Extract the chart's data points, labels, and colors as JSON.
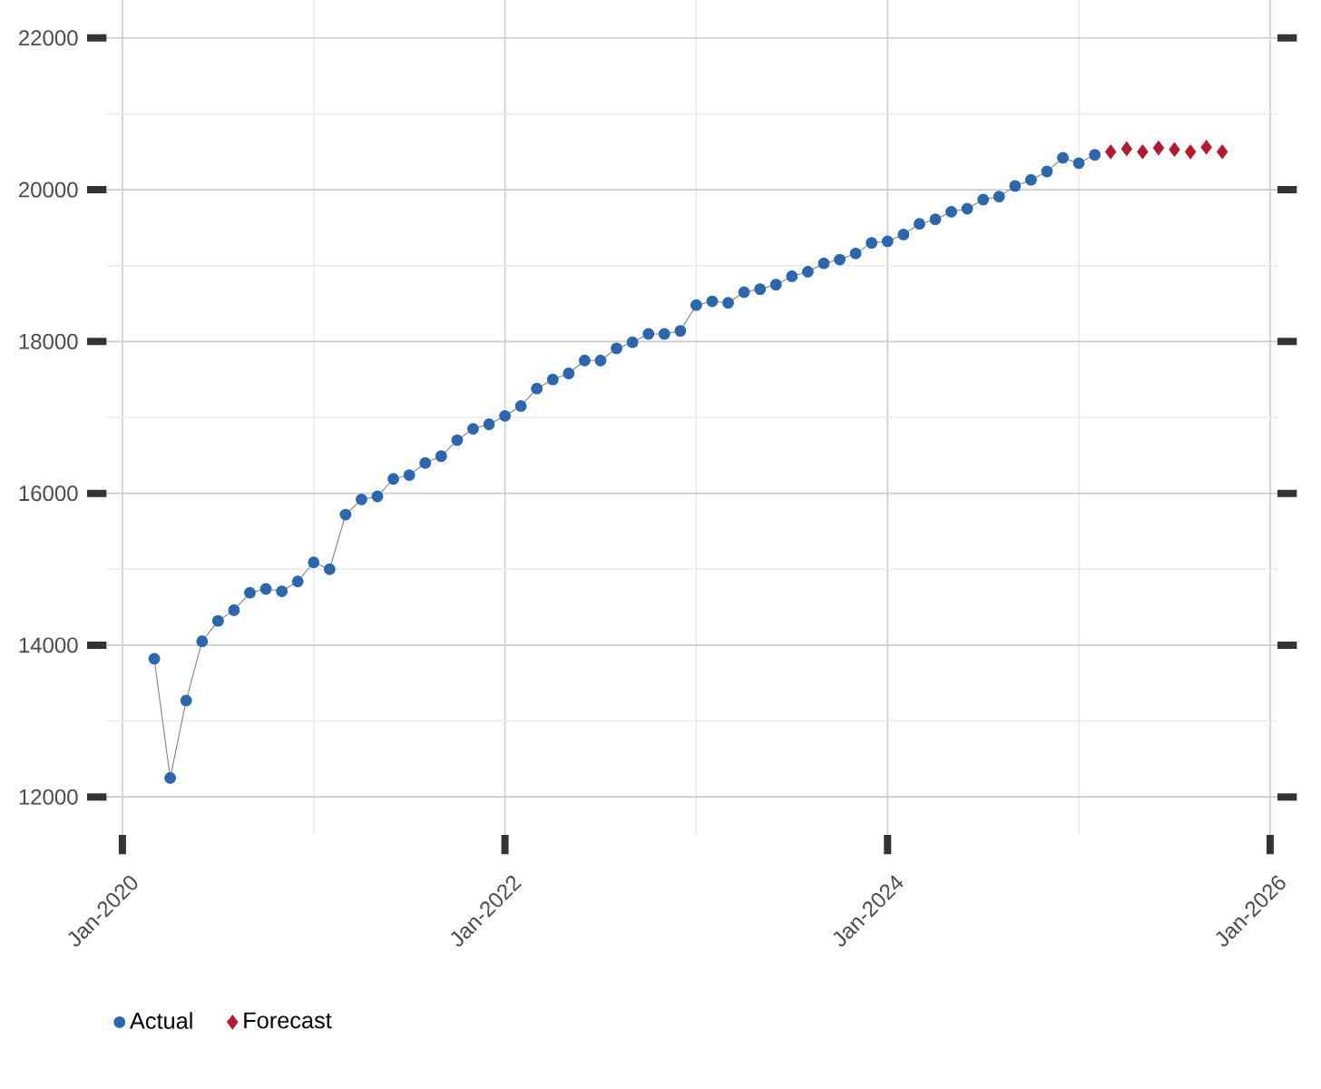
{
  "chart_data": {
    "type": "line",
    "x": [
      "2020-03",
      "2020-04",
      "2020-05",
      "2020-06",
      "2020-07",
      "2020-08",
      "2020-09",
      "2020-10",
      "2020-11",
      "2020-12",
      "2021-01",
      "2021-02",
      "2021-03",
      "2021-04",
      "2021-05",
      "2021-06",
      "2021-07",
      "2021-08",
      "2021-09",
      "2021-10",
      "2021-11",
      "2021-12",
      "2022-01",
      "2022-02",
      "2022-03",
      "2022-04",
      "2022-05",
      "2022-06",
      "2022-07",
      "2022-08",
      "2022-09",
      "2022-10",
      "2022-11",
      "2022-12",
      "2023-01",
      "2023-02",
      "2023-03",
      "2023-04",
      "2023-05",
      "2023-06",
      "2023-07",
      "2023-08",
      "2023-09",
      "2023-10",
      "2023-11",
      "2023-12",
      "2024-01",
      "2024-02",
      "2024-03",
      "2024-04",
      "2024-05",
      "2024-06",
      "2024-07",
      "2024-08",
      "2024-09",
      "2024-10",
      "2024-11",
      "2024-12",
      "2025-01",
      "2025-02"
    ],
    "series": [
      {
        "name": "Actual",
        "marker": "circle",
        "color": "#2b66ae",
        "values": [
          13820,
          12250,
          13270,
          14050,
          14320,
          14460,
          14690,
          14740,
          14710,
          14840,
          15090,
          15000,
          15720,
          15920,
          15960,
          16190,
          16240,
          16400,
          16490,
          16700,
          16850,
          16910,
          17020,
          17150,
          17380,
          17500,
          17580,
          17750,
          17750,
          17910,
          17990,
          18100,
          18100,
          18140,
          18480,
          18530,
          18510,
          18650,
          18690,
          18750,
          18860,
          18920,
          19030,
          19080,
          19160,
          19300,
          19320,
          19410,
          19550,
          19610,
          19710,
          19750,
          19870,
          19910,
          20050,
          20130,
          20240,
          20420,
          20350,
          20460
        ]
      },
      {
        "name": "Forecast",
        "type": "scatter",
        "marker": "diamond",
        "color": "#b5192e",
        "x": [
          "2025-03",
          "2025-04",
          "2025-05",
          "2025-06",
          "2025-07",
          "2025-08",
          "2025-09",
          "2025-10"
        ],
        "values": [
          20500,
          20540,
          20500,
          20550,
          20530,
          20500,
          20560,
          20500
        ]
      }
    ],
    "xlim": [
      "2019-12-01",
      "2026-01-15"
    ],
    "xticks": [
      {
        "value": "2020-01",
        "label": "Jan-2020"
      },
      {
        "value": "2021-01",
        "label": null
      },
      {
        "value": "2022-01",
        "label": "Jan-2022"
      },
      {
        "value": "2023-01",
        "label": null
      },
      {
        "value": "2024-01",
        "label": "Jan-2024"
      },
      {
        "value": "2025-01",
        "label": null
      },
      {
        "value": "2026-01",
        "label": "Jan-2026"
      }
    ],
    "ylim": [
      11500,
      22500
    ],
    "yticks": [
      12000,
      {
        "value": 13000,
        "label": null
      },
      14000,
      {
        "value": 15000,
        "label": null
      },
      16000,
      {
        "value": 17000,
        "label": null
      },
      18000,
      {
        "value": 19000,
        "label": null
      },
      20000,
      {
        "value": 21000,
        "label": null
      },
      22000
    ],
    "grid": true,
    "legend": "bottom left"
  }
}
